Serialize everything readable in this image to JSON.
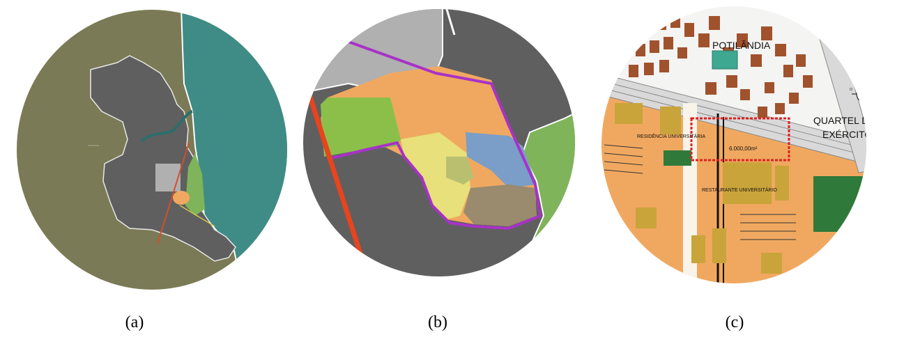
{
  "figure": {
    "panels": [
      {
        "id": "a",
        "caption": "(a)"
      },
      {
        "id": "b",
        "caption": "(b)"
      },
      {
        "id": "c",
        "caption": "(c)"
      }
    ]
  },
  "map_c": {
    "labels": {
      "neighborhood": "POTILÂNDIA",
      "barracks_line1": "QUARTEL DO",
      "barracks_line2": "EXÉRCITO",
      "residence": "RESIDÊNCIA UNIVERSITÁRIA",
      "area": "6.000,00m²",
      "restaurant": "RESTAURANTE UNIVERSITÁRIO",
      "compass_n": "N",
      "compass_s": "S",
      "compass_e": "L",
      "compass_w": "O"
    }
  },
  "colors": {
    "olive": "#7a7a56",
    "teal": "#3f8c86",
    "dark_gray": "#5f5f5f",
    "light_gray": "#b0b0b0",
    "campus_orange": "#f0a860",
    "green_light": "#7fb45a",
    "purple": "#a832c8",
    "red": "#e8441e",
    "yellow": "#e8e07a",
    "blue": "#7a9ec8",
    "brown_gray": "#9a8a6e",
    "building_brown": "#a0522d",
    "building_gold": "#c9a43a"
  }
}
